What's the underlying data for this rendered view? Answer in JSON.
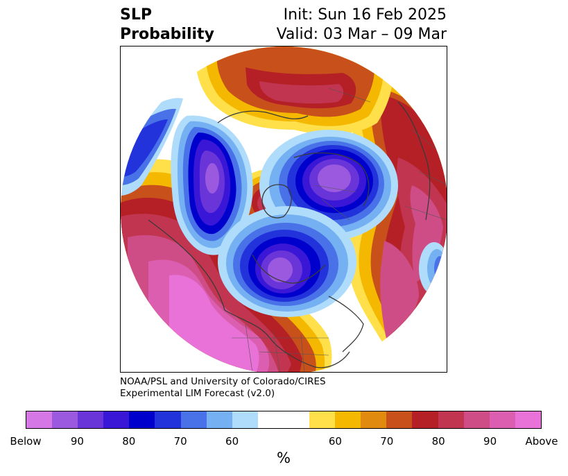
{
  "title": {
    "left_line1": "SLP",
    "left_line2": "Probability",
    "right_line1": "Init: Sun 16 Feb 2025",
    "right_line2": "Valid: 03 Mar – 09 Mar"
  },
  "credit": {
    "line1": "NOAA/PSL and University of Colorado/CIRES",
    "line2": "Experimental LIM Forecast (v2.0)"
  },
  "colorbar": {
    "unit": "%",
    "ticks": [
      "Below",
      "90",
      "80",
      "70",
      "60",
      "60",
      "70",
      "80",
      "90",
      "Above"
    ],
    "below_colors": [
      "#d677e6",
      "#9b59e0",
      "#6a35d8",
      "#3a17d6",
      "#0000cd",
      "#2233dc",
      "#4a72e8",
      "#74b0f2",
      "#aedcfa"
    ],
    "neutral_color": "#ffffff",
    "above_colors": [
      "#ffe04a",
      "#f4b800",
      "#e08a10",
      "#c8501a",
      "#b42026",
      "#c23550",
      "#cf4d86",
      "#dc5eb0",
      "#e872d8"
    ]
  },
  "map": {
    "projection": "north-polar-stereographic",
    "anomaly_centers": [
      {
        "sign": "below",
        "region": "Aleutians / Bering Sea",
        "max_category": "90"
      },
      {
        "sign": "below",
        "region": "North-central Siberia / Laptev",
        "max_category": "90"
      },
      {
        "sign": "below",
        "region": "Canada / Hudson Bay",
        "max_category": "90"
      },
      {
        "sign": "below",
        "region": "Eastern North Atlantic (small)",
        "max_category": "70"
      },
      {
        "sign": "above",
        "region": "North Pacific / western North America",
        "max_category": "Above"
      },
      {
        "sign": "above",
        "region": "North Atlantic / Europe",
        "max_category": "90"
      },
      {
        "sign": "above",
        "region": "Central Siberia",
        "max_category": "80"
      },
      {
        "sign": "above",
        "region": "Central Arctic Ocean",
        "max_category": "80"
      }
    ]
  }
}
